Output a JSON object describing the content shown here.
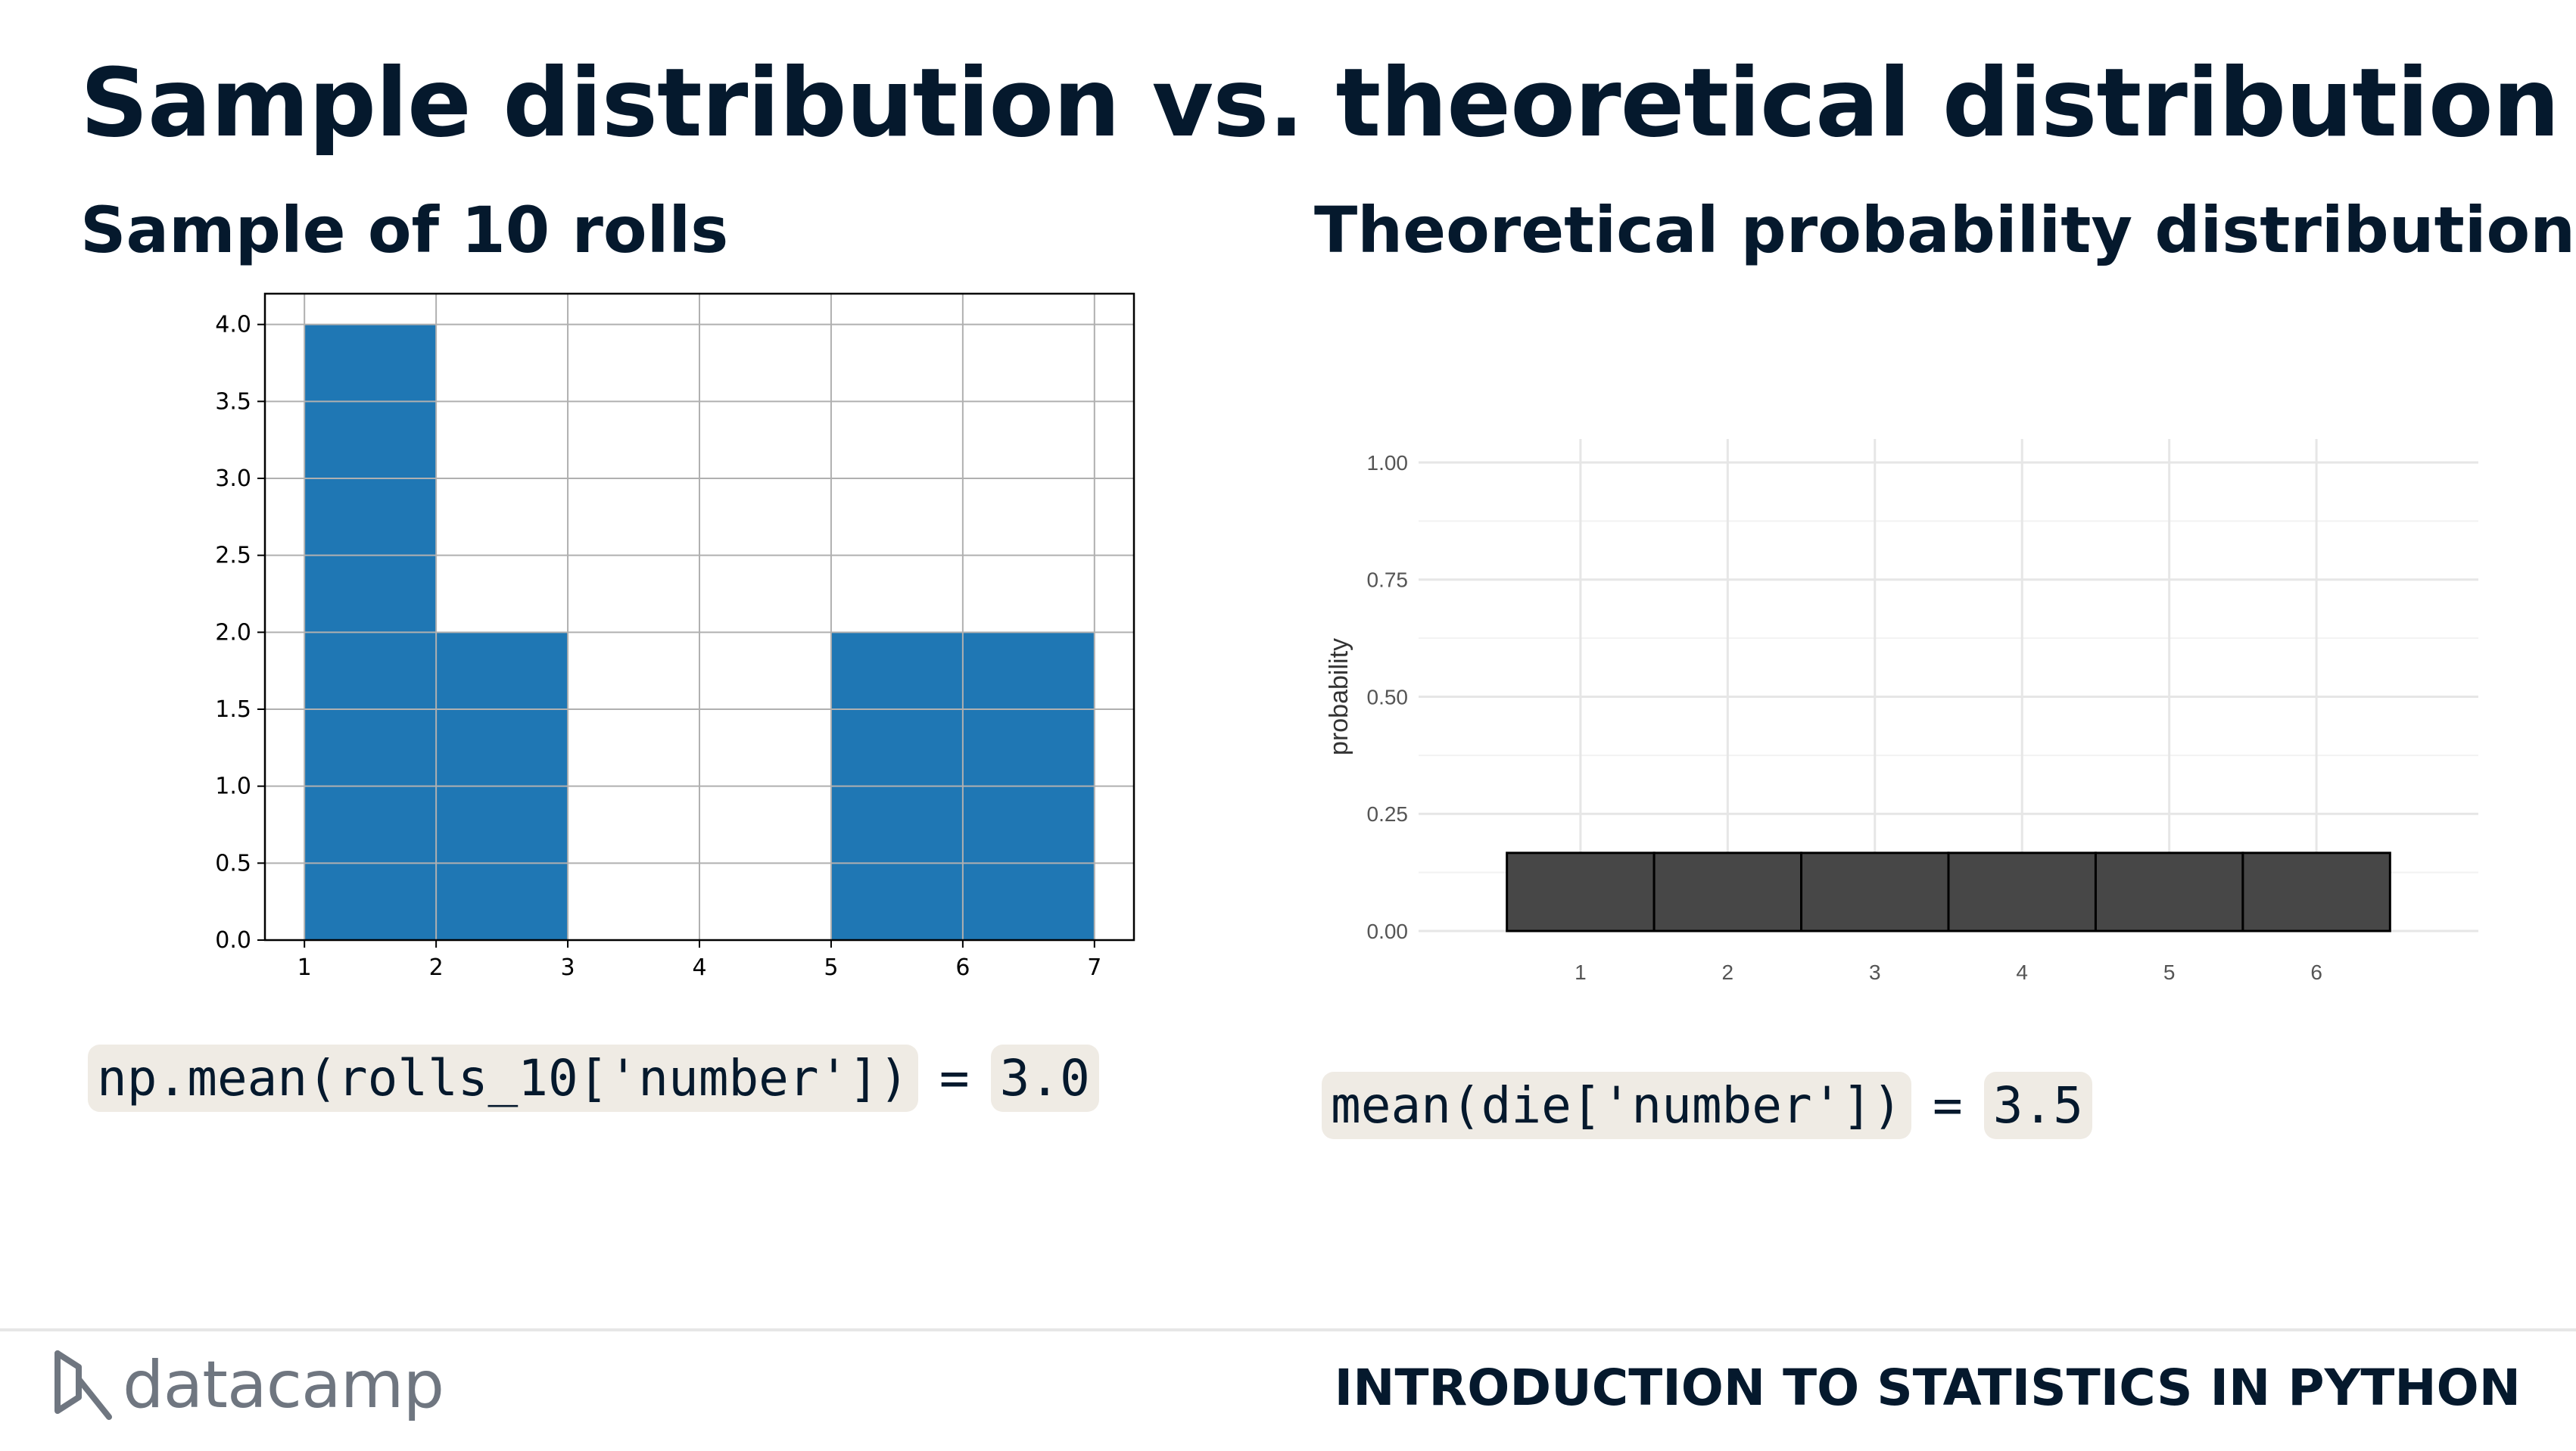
{
  "slide": {
    "title": "Sample distribution vs. theoretical distribution",
    "left_subtitle": "Sample of 10 rolls",
    "right_subtitle": "Theoretical probability distribution"
  },
  "left_code": {
    "expr": "np.mean(rolls_10['number'])",
    "equals": "=",
    "result": "3.0"
  },
  "right_code": {
    "expr": "mean(die['number'])",
    "equals": "=",
    "result": "3.5"
  },
  "footer": {
    "logo_text": "datacamp",
    "course": "INTRODUCTION TO STATISTICS IN PYTHON"
  },
  "colors": {
    "bar_left": "#1f77b4",
    "bar_right": "#474747",
    "text_dark": "#05192d",
    "code_bg": "#efebe4"
  },
  "chart_data": [
    {
      "type": "bar",
      "bins": [
        {
          "start": 1,
          "end": 2,
          "value": 4
        },
        {
          "start": 2,
          "end": 3,
          "value": 2
        },
        {
          "start": 3,
          "end": 4,
          "value": 0
        },
        {
          "start": 4,
          "end": 5,
          "value": 0
        },
        {
          "start": 5,
          "end": 6,
          "value": 2
        },
        {
          "start": 6,
          "end": 7,
          "value": 2
        }
      ],
      "xlim": [
        0.7,
        7.3
      ],
      "ylim": [
        0,
        4.2
      ],
      "xticks": [
        "1",
        "2",
        "3",
        "4",
        "5",
        "6",
        "7"
      ],
      "yticks": [
        "0.0",
        "0.5",
        "1.0",
        "1.5",
        "2.0",
        "2.5",
        "3.0",
        "3.5",
        "4.0"
      ],
      "grid": true,
      "xlabel": "",
      "ylabel": ""
    },
    {
      "type": "bar",
      "categories": [
        "1",
        "2",
        "3",
        "4",
        "5",
        "6"
      ],
      "values": [
        0.1667,
        0.1667,
        0.1667,
        0.1667,
        0.1667,
        0.1667
      ],
      "xlim": [
        -0.1,
        7.1
      ],
      "ylim": [
        0,
        1.05
      ],
      "yticks": [
        "0.00",
        "0.25",
        "0.50",
        "0.75",
        "1.00"
      ],
      "grid": true,
      "xlabel": "",
      "ylabel": "probability"
    }
  ]
}
